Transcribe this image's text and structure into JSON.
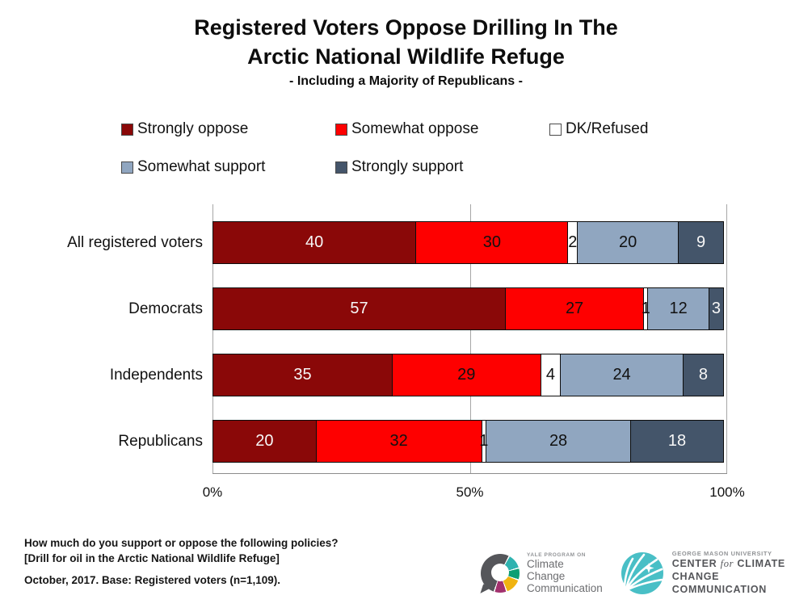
{
  "header": {
    "title_line1": "Registered Voters Oppose Drilling In The",
    "title_line2": "Arctic National Wildlife Refuge",
    "subtitle": "- Including a Majority of Republicans -"
  },
  "legend": {
    "items": [
      {
        "label": "Strongly oppose",
        "color": "#8A0808"
      },
      {
        "label": "Somewhat oppose",
        "color": "#FE0000"
      },
      {
        "label": "DK/Refused",
        "color": "#FFFFFF"
      },
      {
        "label": "Somewhat support",
        "color": "#90A6C0"
      },
      {
        "label": "Strongly support",
        "color": "#44556A"
      }
    ]
  },
  "chart_data": {
    "type": "bar",
    "orientation": "horizontal",
    "stacked": true,
    "categories": [
      "All registered voters",
      "Democrats",
      "Independents",
      "Republicans"
    ],
    "series": [
      {
        "name": "Strongly oppose",
        "color": "#8A0808",
        "label_color": "#f7f7f7",
        "values": [
          40,
          57,
          35,
          20
        ]
      },
      {
        "name": "Somewhat oppose",
        "color": "#FE0000",
        "label_color": "#111111",
        "values": [
          30,
          27,
          29,
          32
        ]
      },
      {
        "name": "DK/Refused",
        "color": "#FFFFFF",
        "label_color": "#111111",
        "values": [
          2,
          1,
          4,
          1
        ]
      },
      {
        "name": "Somewhat support",
        "color": "#90A6C0",
        "label_color": "#111111",
        "values": [
          20,
          12,
          24,
          28
        ]
      },
      {
        "name": "Strongly support",
        "color": "#44556A",
        "label_color": "#f7f7f7",
        "values": [
          9,
          3,
          8,
          18
        ]
      }
    ],
    "x_ticks": [
      "0%",
      "50%",
      "100%"
    ],
    "gridline_positions": [
      0,
      50,
      100
    ],
    "xlim": [
      0,
      100
    ],
    "legend_position": "top"
  },
  "footer": {
    "question_line1": "How much do you support or oppose the following policies?",
    "question_line2": "[Drill for oil in the Arctic National Wildlife Refuge]",
    "base_note": "October, 2017. Base: Registered voters (n=1,109)."
  },
  "logos": {
    "yale": {
      "line_small": "YALE PROGRAM ON",
      "line1": "Climate Change",
      "line2": "Communication"
    },
    "gmu": {
      "line_small": "GEORGE MASON UNIVERSITY",
      "center_pre": "CENTER ",
      "center_for": "for",
      "center_post": " CLIMATE CHANGE",
      "line2": "COMMUNICATION"
    }
  }
}
